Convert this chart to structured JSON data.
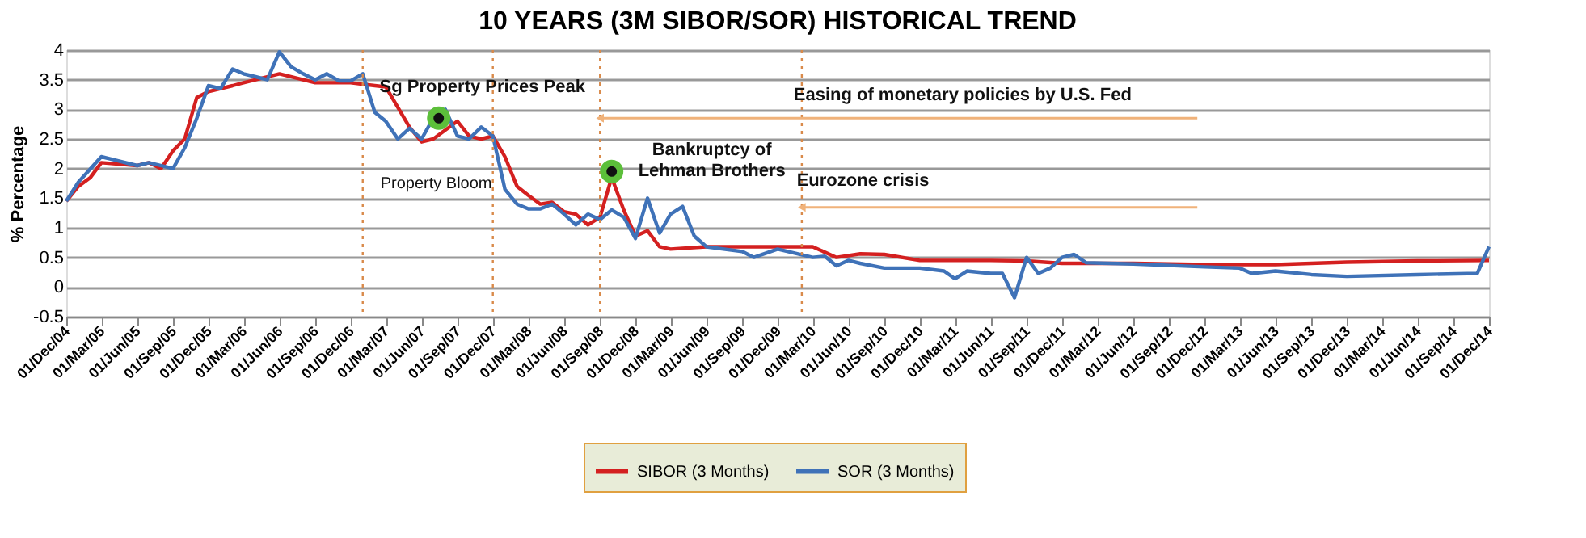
{
  "chart_data": {
    "type": "line",
    "title": "10 YEARS (3M SIBOR/SOR)  HISTORICAL TREND",
    "ylabel": "%  Percentage",
    "ylim": [
      -0.5,
      4
    ],
    "yticks": [
      -0.5,
      0,
      0.5,
      1,
      1.5,
      2,
      2.5,
      3,
      3.5,
      4
    ],
    "xlim": [
      "2004-12-01",
      "2014-12-01"
    ],
    "xticks": [
      {
        "value": "2004-12-01",
        "label": "01/Dec/04"
      },
      {
        "value": "2005-03-01",
        "label": "01/Mar/05"
      },
      {
        "value": "2005-06-01",
        "label": "01/Jun/05"
      },
      {
        "value": "2005-09-01",
        "label": "01/Sep/05"
      },
      {
        "value": "2005-12-01",
        "label": "01/Dec/05"
      },
      {
        "value": "2006-03-01",
        "label": "01/Mar/06"
      },
      {
        "value": "2006-06-01",
        "label": "01/Jun/06"
      },
      {
        "value": "2006-09-01",
        "label": "01/Sep/06"
      },
      {
        "value": "2006-12-01",
        "label": "01/Dec/06"
      },
      {
        "value": "2007-03-01",
        "label": "01/Mar/07"
      },
      {
        "value": "2007-06-01",
        "label": "01/Jun/07"
      },
      {
        "value": "2007-09-01",
        "label": "01/Sep/07"
      },
      {
        "value": "2007-12-01",
        "label": "01/Dec/07"
      },
      {
        "value": "2008-03-01",
        "label": "01/Mar/08"
      },
      {
        "value": "2008-06-01",
        "label": "01/Jun/08"
      },
      {
        "value": "2008-09-01",
        "label": "01/Sep/08"
      },
      {
        "value": "2008-12-01",
        "label": "01/Dec/08"
      },
      {
        "value": "2009-03-01",
        "label": "01/Mar/09"
      },
      {
        "value": "2009-06-01",
        "label": "01/Jun/09"
      },
      {
        "value": "2009-09-01",
        "label": "01/Sep/09"
      },
      {
        "value": "2009-12-01",
        "label": "01/Dec/09"
      },
      {
        "value": "2010-03-01",
        "label": "01/Mar/10"
      },
      {
        "value": "2010-06-01",
        "label": "01/Jun/10"
      },
      {
        "value": "2010-09-01",
        "label": "01/Sep/10"
      },
      {
        "value": "2010-12-01",
        "label": "01/Dec/10"
      },
      {
        "value": "2011-03-01",
        "label": "01/Mar/11"
      },
      {
        "value": "2011-06-01",
        "label": "01/Jun/11"
      },
      {
        "value": "2011-09-01",
        "label": "01/Sep/11"
      },
      {
        "value": "2011-12-01",
        "label": "01/Dec/11"
      },
      {
        "value": "2012-03-01",
        "label": "01/Mar/12"
      },
      {
        "value": "2012-06-01",
        "label": "01/Jun/12"
      },
      {
        "value": "2012-09-01",
        "label": "01/Sep/12"
      },
      {
        "value": "2012-12-01",
        "label": "01/Dec/12"
      },
      {
        "value": "2013-03-01",
        "label": "01/Mar/13"
      },
      {
        "value": "2013-06-01",
        "label": "01/Jun/13"
      },
      {
        "value": "2013-09-01",
        "label": "01/Sep/13"
      },
      {
        "value": "2013-12-01",
        "label": "01/Dec/13"
      },
      {
        "value": "2014-03-01",
        "label": "01/Mar/14"
      },
      {
        "value": "2014-06-01",
        "label": "01/Jun/14"
      },
      {
        "value": "2014-09-01",
        "label": "01/Sep/14"
      },
      {
        "value": "2014-12-01",
        "label": "01/Dec/14"
      }
    ],
    "grid": "y",
    "legend": "bottom",
    "line_style": "solid",
    "series": [
      {
        "name": "SIBOR (3 Months)",
        "color": "#d42020",
        "x": [
          "2004-12-01",
          "2005-01-01",
          "2005-02-01",
          "2005-03-01",
          "2005-06-01",
          "2005-07-01",
          "2005-08-01",
          "2005-09-01",
          "2005-10-01",
          "2005-11-01",
          "2005-12-01",
          "2006-02-01",
          "2006-03-01",
          "2006-06-01",
          "2006-09-01",
          "2006-12-01",
          "2007-02-01",
          "2007-03-01",
          "2007-05-01",
          "2007-06-01",
          "2007-07-01",
          "2007-08-01",
          "2007-09-01",
          "2007-10-01",
          "2007-11-01",
          "2007-12-01",
          "2008-01-01",
          "2008-02-01",
          "2008-03-01",
          "2008-04-01",
          "2008-05-01",
          "2008-06-01",
          "2008-07-01",
          "2008-08-01",
          "2008-09-01",
          "2008-10-01",
          "2008-11-01",
          "2008-12-01",
          "2009-01-01",
          "2009-02-01",
          "2009-03-01",
          "2009-06-01",
          "2009-12-01",
          "2010-03-01",
          "2010-05-01",
          "2010-07-01",
          "2010-09-01",
          "2010-12-01",
          "2011-06-01",
          "2011-09-01",
          "2011-12-01",
          "2012-06-01",
          "2012-12-01",
          "2013-06-01",
          "2013-12-01",
          "2014-06-01",
          "2014-12-01"
        ],
        "values": [
          1.45,
          1.7,
          1.85,
          2.1,
          2.05,
          2.1,
          2.0,
          2.3,
          2.5,
          3.2,
          3.3,
          3.4,
          3.45,
          3.6,
          3.45,
          3.45,
          3.4,
          3.38,
          2.7,
          2.45,
          2.5,
          2.65,
          2.8,
          2.55,
          2.5,
          2.55,
          2.2,
          1.7,
          1.55,
          1.4,
          1.43,
          1.27,
          1.23,
          1.05,
          1.18,
          1.85,
          1.3,
          0.86,
          0.95,
          0.68,
          0.64,
          0.68,
          0.68,
          0.68,
          0.5,
          0.56,
          0.55,
          0.45,
          0.45,
          0.44,
          0.4,
          0.4,
          0.38,
          0.38,
          0.42,
          0.44,
          0.45
        ]
      },
      {
        "name": "SOR (3 Months)",
        "color": "#3f72b8",
        "x": [
          "2004-12-01",
          "2005-01-01",
          "2005-03-01",
          "2005-04-01",
          "2005-06-01",
          "2005-07-01",
          "2005-09-01",
          "2005-10-01",
          "2005-11-01",
          "2005-12-01",
          "2006-01-01",
          "2006-02-01",
          "2006-03-01",
          "2006-04-01",
          "2006-05-01",
          "2006-06-01",
          "2006-07-01",
          "2006-08-01",
          "2006-09-01",
          "2006-10-01",
          "2006-11-01",
          "2006-12-01",
          "2007-01-01",
          "2007-02-01",
          "2007-03-01",
          "2007-04-01",
          "2007-05-01",
          "2007-06-01",
          "2007-07-01",
          "2007-08-01",
          "2007-09-01",
          "2007-10-01",
          "2007-11-01",
          "2007-12-01",
          "2008-01-01",
          "2008-02-01",
          "2008-03-01",
          "2008-04-01",
          "2008-05-01",
          "2008-06-01",
          "2008-07-01",
          "2008-08-01",
          "2008-09-01",
          "2008-10-01",
          "2008-11-01",
          "2008-12-01",
          "2009-01-01",
          "2009-02-01",
          "2009-03-01",
          "2009-04-01",
          "2009-05-01",
          "2009-06-01",
          "2009-09-01",
          "2009-10-01",
          "2009-12-01",
          "2010-03-01",
          "2010-04-01",
          "2010-05-01",
          "2010-06-01",
          "2010-07-01",
          "2010-09-01",
          "2010-12-01",
          "2011-02-01",
          "2011-03-01",
          "2011-04-01",
          "2011-06-01",
          "2011-07-01",
          "2011-08-01",
          "2011-09-01",
          "2011-10-01",
          "2011-11-01",
          "2011-12-01",
          "2012-01-01",
          "2012-02-01",
          "2012-06-01",
          "2012-12-01",
          "2013-03-01",
          "2013-04-01",
          "2013-06-01",
          "2013-09-01",
          "2013-12-01",
          "2014-06-01",
          "2014-11-01",
          "2014-12-01"
        ],
        "values": [
          1.45,
          1.77,
          2.2,
          2.15,
          2.05,
          2.1,
          2.0,
          2.35,
          2.85,
          3.4,
          3.35,
          3.68,
          3.6,
          3.55,
          3.5,
          3.97,
          3.72,
          3.6,
          3.5,
          3.6,
          3.48,
          3.48,
          3.6,
          2.95,
          2.8,
          2.5,
          2.68,
          2.5,
          2.85,
          3.0,
          2.55,
          2.5,
          2.7,
          2.55,
          1.65,
          1.4,
          1.32,
          1.32,
          1.4,
          1.23,
          1.05,
          1.23,
          1.14,
          1.3,
          1.18,
          0.82,
          1.5,
          0.91,
          1.23,
          1.36,
          0.86,
          0.68,
          0.6,
          0.5,
          0.64,
          0.5,
          0.52,
          0.36,
          0.45,
          0.4,
          0.32,
          0.32,
          0.27,
          0.14,
          0.27,
          0.23,
          0.23,
          -0.18,
          0.5,
          0.23,
          0.32,
          0.5,
          0.55,
          0.41,
          0.39,
          0.34,
          0.32,
          0.23,
          0.27,
          0.21,
          0.18,
          0.21,
          0.23,
          0.68
        ]
      },
      {
        "type": "scatter",
        "color": "#5cbf3a",
        "marker": "circle",
        "x": [
          "2007-07-15",
          "2008-10-01"
        ],
        "values": [
          2.85,
          1.95
        ]
      }
    ],
    "ref_lines": [
      {
        "axis": "x",
        "value": "2007-01-01",
        "color": "#d98a4a",
        "line_style": "dotted"
      },
      {
        "axis": "x",
        "value": "2007-12-01",
        "color": "#d98a4a",
        "line_style": "dotted"
      },
      {
        "axis": "x",
        "value": "2008-09-01",
        "color": "#d98a4a",
        "line_style": "dotted"
      },
      {
        "axis": "x",
        "value": "2010-02-01",
        "color": "#d98a4a",
        "line_style": "dotted"
      }
    ],
    "annotations": [
      {
        "text": "Sg Property Prices Peak",
        "x": "2007-07-15",
        "y": 2.85
      },
      {
        "text": "Bankruptcy of\nLehman Brothers",
        "x": "2008-10-01",
        "y": 1.95
      },
      "Property Bloom",
      "Easing of monetary policies by U.S. Fed",
      "Eurozone crisis"
    ]
  }
}
